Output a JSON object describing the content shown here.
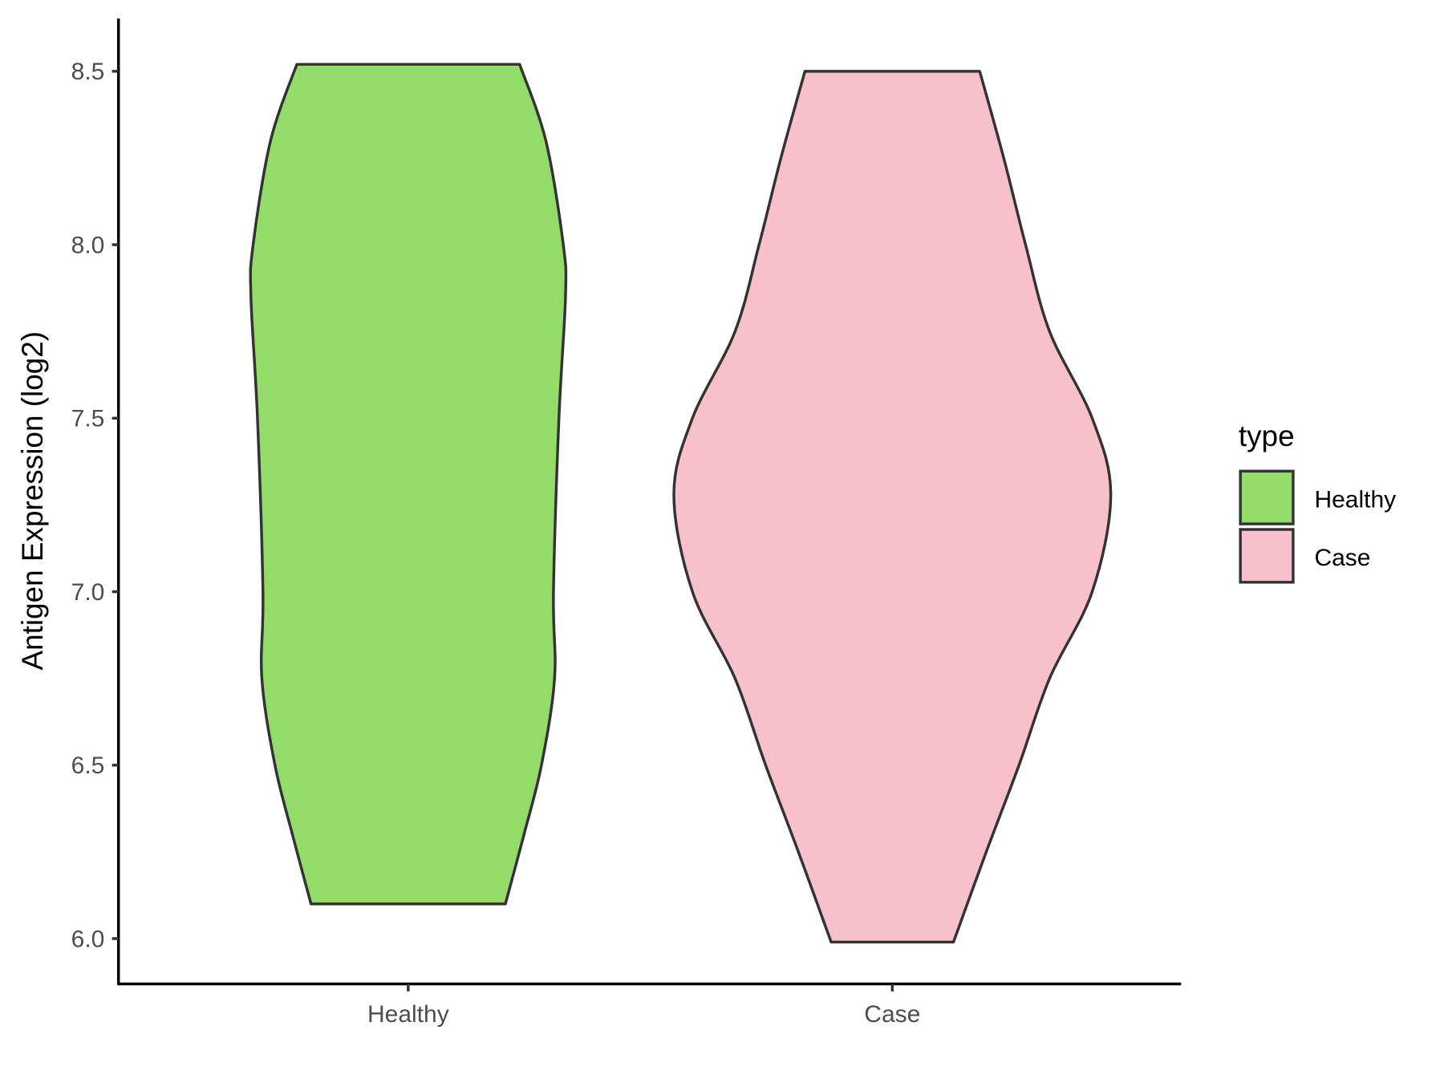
{
  "chart_data": {
    "type": "violin",
    "title": "",
    "xlabel": "",
    "ylabel": "Antigen Expression (log2)",
    "ylim": [
      5.87,
      8.65
    ],
    "yticks": [
      "6.0",
      "6.5",
      "7.0",
      "7.5",
      "8.0",
      "8.5"
    ],
    "categories": [
      "Healthy",
      "Case"
    ],
    "grid": false,
    "legend": {
      "title": "type",
      "placement": "right",
      "entries": [
        "Healthy",
        "Case"
      ]
    },
    "series": [
      {
        "name": "Healthy",
        "color": "#93DC6A",
        "density_profile": [
          [
            6.1,
            0.445
          ],
          [
            6.3,
            0.53
          ],
          [
            6.5,
            0.61
          ],
          [
            6.75,
            0.67
          ],
          [
            7.0,
            0.665
          ],
          [
            7.5,
            0.69
          ],
          [
            7.85,
            0.72
          ],
          [
            8.0,
            0.71
          ],
          [
            8.3,
            0.63
          ],
          [
            8.52,
            0.51
          ]
        ]
      },
      {
        "name": "Case",
        "color": "#F8C0CB",
        "density_profile": [
          [
            5.99,
            0.28
          ],
          [
            6.25,
            0.43
          ],
          [
            6.5,
            0.58
          ],
          [
            6.75,
            0.72
          ],
          [
            7.0,
            0.915
          ],
          [
            7.28,
            1.0
          ],
          [
            7.5,
            0.915
          ],
          [
            7.75,
            0.72
          ],
          [
            8.0,
            0.61
          ],
          [
            8.25,
            0.51
          ],
          [
            8.5,
            0.4
          ]
        ]
      }
    ]
  }
}
